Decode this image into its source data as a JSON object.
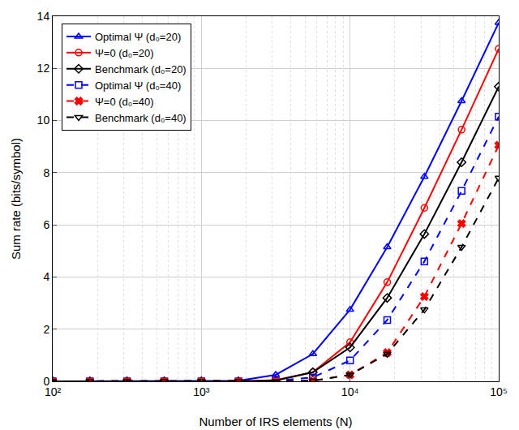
{
  "chart_data": {
    "type": "line",
    "x_label": "Number of IRS elements (N)",
    "y_label": "Sum rate (bits/symbol)",
    "log": "x",
    "grid": true,
    "legend": "top-left",
    "x": [
      100,
      177.8,
      316.2,
      562.3,
      1000,
      1778,
      3162,
      5623,
      10000,
      17783,
      31623,
      56234,
      100000
    ],
    "xlim": [
      100,
      100000
    ],
    "xticks": [
      {
        "value": 100,
        "label": "10²"
      },
      {
        "value": 1000,
        "label": "10³"
      },
      {
        "value": 10000,
        "label": "10⁴"
      },
      {
        "value": 100000,
        "label": "10⁵"
      }
    ],
    "ylim": [
      0,
      14
    ],
    "yticks": [
      0,
      2,
      4,
      6,
      8,
      10,
      12,
      14
    ],
    "series": [
      {
        "name": "Optimal Ψ (d₀=20)",
        "color": "#0000ff",
        "marker": "triangle-up-open",
        "line_style": "solid",
        "values": [
          0,
          0,
          0,
          0,
          0,
          0.02,
          0.25,
          1.05,
          2.75,
          5.15,
          7.85,
          10.75,
          13.75
        ]
      },
      {
        "name": "Ψ=0 (d₀=20)",
        "color": "#ff0000",
        "marker": "circle-open",
        "line_style": "solid",
        "values": [
          0,
          0,
          0,
          0,
          0,
          0,
          0.05,
          0.35,
          1.5,
          3.8,
          6.65,
          9.65,
          12.75
        ]
      },
      {
        "name": "Benchmark (d₀=20)",
        "color": "#000000",
        "marker": "diamond-open",
        "line_style": "solid",
        "values": [
          0,
          0,
          0,
          0,
          0,
          0,
          0.03,
          0.35,
          1.3,
          3.2,
          5.65,
          8.4,
          11.3
        ]
      },
      {
        "name": "Optimal Ψ (d₀=40)",
        "color": "#0000ff",
        "marker": "square-open",
        "line_style": "dash",
        "values": [
          0,
          0,
          0,
          0,
          0,
          0,
          0.02,
          0.15,
          0.8,
          2.35,
          4.6,
          7.3,
          10.15
        ]
      },
      {
        "name": "Ψ=0 (d₀=40)",
        "color": "#ff0000",
        "marker": "x",
        "line_style": "dash",
        "values": [
          0,
          0,
          0,
          0,
          0,
          0,
          0,
          0.02,
          0.25,
          1.1,
          3.25,
          6.05,
          9.05
        ]
      },
      {
        "name": "Benchmark (d₀=40)",
        "color": "#000000",
        "marker": "triangle-down-open",
        "line_style": "dash",
        "values": [
          0,
          0,
          0,
          0,
          0,
          0,
          0,
          0.02,
          0.25,
          1.05,
          2.75,
          5.15,
          7.8
        ]
      }
    ]
  }
}
